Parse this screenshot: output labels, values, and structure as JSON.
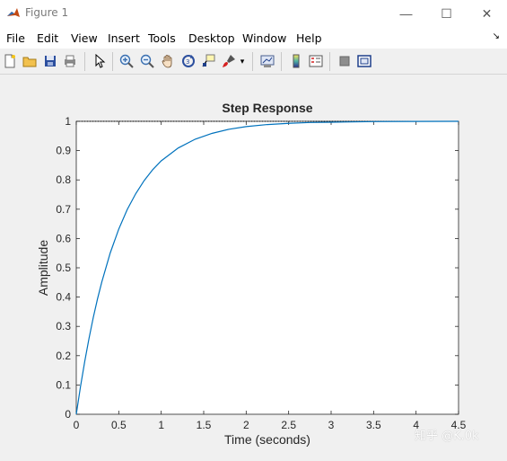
{
  "window": {
    "title": "Figure 1",
    "minimize_glyph": "—",
    "maximize_glyph": "☐",
    "close_glyph": "✕",
    "icon": "matlab-logo-icon"
  },
  "menu": {
    "items": [
      {
        "name": "menu-file",
        "label": "File"
      },
      {
        "name": "menu-edit",
        "label": "Edit"
      },
      {
        "name": "menu-view",
        "label": "View"
      },
      {
        "name": "menu-insert",
        "label": "Insert"
      },
      {
        "name": "menu-tools",
        "label": "Tools"
      },
      {
        "name": "menu-desktop",
        "label": "Desktop"
      },
      {
        "name": "menu-window",
        "label": "Window"
      },
      {
        "name": "menu-help",
        "label": "Help"
      }
    ],
    "dock_glyph": "↘"
  },
  "toolbar": {
    "buttons": [
      "new-figure-icon",
      "open-file-icon",
      "save-icon",
      "print-icon",
      "edit-plot-arrow-icon",
      "zoom-in-icon",
      "zoom-out-icon",
      "pan-hand-icon",
      "rotate-3d-icon",
      "data-cursor-icon",
      "brush-icon",
      "link-plot-icon",
      "insert-colorbar-icon",
      "insert-legend-icon",
      "hide-plot-tools-icon",
      "show-plot-tools-icon"
    ],
    "dropdown_glyph": "▾"
  },
  "colors": {
    "line": "#0072bd",
    "axes": "#262626",
    "grid_tick": "#262626",
    "background": "#f0f0f0"
  },
  "chart_data": {
    "type": "line",
    "title": "Step Response",
    "xlabel": "Time (seconds)",
    "ylabel": "Amplitude",
    "xlim": [
      0,
      4.5
    ],
    "ylim": [
      0,
      1
    ],
    "xticks": [
      "0",
      "0.5",
      "1",
      "1.5",
      "2",
      "2.5",
      "3",
      "3.5",
      "4",
      "4.5"
    ],
    "yticks": [
      "0",
      "0.1",
      "0.2",
      "0.3",
      "0.4",
      "0.5",
      "0.6",
      "0.7",
      "0.8",
      "0.9",
      "1"
    ],
    "steady_state_reference": 1,
    "series": [
      {
        "x": [
          0,
          0.05,
          0.1,
          0.15,
          0.2,
          0.25,
          0.3,
          0.4,
          0.5,
          0.6,
          0.7,
          0.8,
          0.9,
          1.0,
          1.2,
          1.4,
          1.6,
          1.8,
          2.0,
          2.25,
          2.5,
          2.75,
          3.0,
          3.5,
          4.0,
          4.5
        ],
        "values": [
          0,
          0.095,
          0.181,
          0.259,
          0.33,
          0.394,
          0.451,
          0.551,
          0.632,
          0.699,
          0.753,
          0.798,
          0.835,
          0.865,
          0.909,
          0.939,
          0.959,
          0.973,
          0.982,
          0.989,
          0.993,
          0.996,
          0.997,
          0.999,
          0.9997,
          0.9999
        ]
      }
    ]
  },
  "watermark": "知乎 @K.0k"
}
